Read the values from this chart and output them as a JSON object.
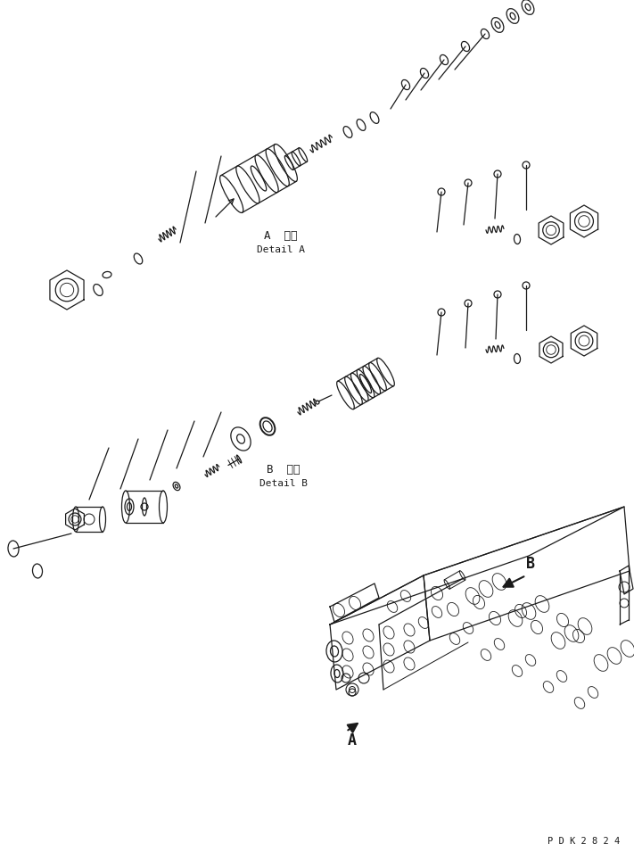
{
  "bg_color": "#ffffff",
  "line_color": "#1a1a1a",
  "fig_width": 7.11,
  "fig_height": 9.55,
  "dpi": 100,
  "label_A_jp": "A  詳細",
  "label_A_en": "Detail A",
  "label_B_jp": "B  詳細",
  "label_B_en": "Detail B",
  "label_A_arrow": "A",
  "label_B_arrow": "B",
  "watermark": "P D K 2 8 2 4"
}
